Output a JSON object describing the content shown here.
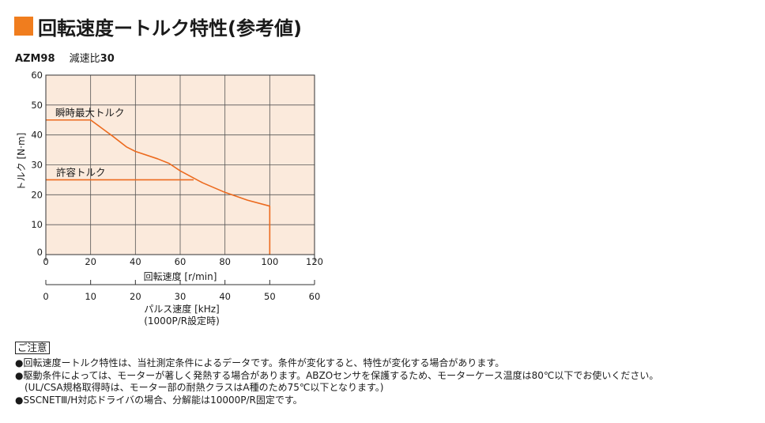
{
  "title": "回転速度ートルク特性(参考値)",
  "subtitle": {
    "model": "AZM98",
    "ratio_label": "減速比",
    "ratio_value": "30"
  },
  "colors": {
    "accent": "#f07d1e",
    "plot_bg": "#fbeadc",
    "curve": "#ec6a1e",
    "grid": "#555555"
  },
  "chart_data": {
    "type": "line",
    "xlabel": "回転速度 [r/min]",
    "ylabel": "トルク [N·m]",
    "xlim": [
      0,
      120
    ],
    "ylim": [
      0,
      60
    ],
    "xticks": [
      0,
      20,
      40,
      60,
      80,
      100,
      120
    ],
    "yticks": [
      0,
      10,
      20,
      30,
      40,
      50,
      60
    ],
    "grid": true,
    "secondary_axis": {
      "label": "パルス速度 [kHz]",
      "note": "(1000P/R設定時)",
      "ticks": [
        0,
        10,
        20,
        30,
        40,
        50,
        60
      ]
    },
    "series": [
      {
        "name": "瞬時最大トルク",
        "x": [
          0,
          20,
          30,
          36,
          40,
          50,
          55,
          60,
          70,
          80,
          90,
          100,
          100
        ],
        "y": [
          45,
          45,
          39.5,
          36,
          34.5,
          32,
          30.5,
          28,
          24,
          20.8,
          18.2,
          16.2,
          0
        ]
      },
      {
        "name": "許容トルク",
        "x": [
          0,
          66
        ],
        "y": [
          25,
          25
        ]
      }
    ]
  },
  "notes": {
    "heading": "ご注意",
    "items": [
      "●回転速度ートルク特性は、当社測定条件によるデータです。条件が変化すると、特性が変化する場合があります。",
      "●駆動条件によっては、モーターが著しく発熱する場合があります。ABZOセンサを保護するため、モーターケース温度は80℃以下でお使いください。",
      "(UL/CSA規格取得時は、モーター部の耐熱クラスはA種のため75℃以下となります。)",
      "●SSCNETⅢ/H対応ドライバの場合、分解能は10000P/R固定です。"
    ]
  }
}
